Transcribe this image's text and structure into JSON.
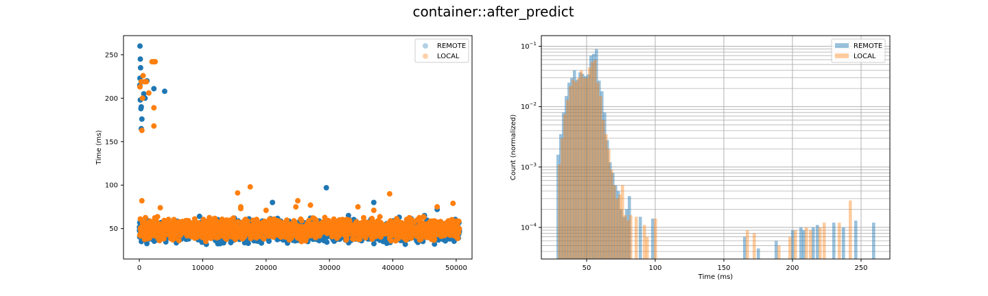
{
  "figure_title": "container::after_predict",
  "colors": {
    "remote": "#1f77b4",
    "local": "#ff7f0e",
    "grid": "#b0b0b0"
  },
  "chart_data": [
    {
      "type": "scatter",
      "xlabel": "",
      "ylabel": "Time (ms)",
      "xlim": [
        -2500,
        52500
      ],
      "ylim": [
        15,
        272
      ],
      "xticks": [
        0,
        10000,
        20000,
        30000,
        40000,
        50000
      ],
      "yticks": [
        50,
        100,
        150,
        200,
        250
      ],
      "grid": false,
      "legend_position": "upper right",
      "series": [
        {
          "name": "REMOTE",
          "color": "#1f77b4",
          "band": {
            "x_range": [
              0,
              50500
            ],
            "y_range": [
              30,
              64
            ]
          },
          "points": [
            [
              100,
              260
            ],
            [
              150,
              245
            ],
            [
              200,
              235
            ],
            [
              100,
              223
            ],
            [
              80,
              215
            ],
            [
              150,
              198
            ],
            [
              250,
              188
            ],
            [
              400,
              176
            ],
            [
              300,
              165
            ],
            [
              700,
              205
            ],
            [
              1200,
              220
            ],
            [
              2300,
              211
            ],
            [
              4000,
              208
            ],
            [
              900,
              200
            ],
            [
              300,
              190
            ],
            [
              29500,
              97
            ],
            [
              21000,
              80
            ],
            [
              37000,
              80
            ],
            [
              47000,
              72
            ],
            [
              33000,
              65
            ],
            [
              15000,
              62
            ],
            [
              45000,
              65
            ],
            [
              9500,
              64
            ],
            [
              27000,
              62
            ],
            [
              41000,
              63
            ]
          ]
        },
        {
          "name": "LOCAL",
          "color": "#ff7f0e",
          "band": {
            "x_range": [
              0,
              50500
            ],
            "y_range": [
              33,
              66
            ]
          },
          "points": [
            [
              400,
              82
            ],
            [
              400,
              163
            ],
            [
              100,
              213
            ],
            [
              300,
              219
            ],
            [
              600,
              226
            ],
            [
              800,
              219
            ],
            [
              1100,
              219
            ],
            [
              1500,
              206
            ],
            [
              2000,
              242
            ],
            [
              2300,
              242
            ],
            [
              2500,
              242
            ],
            [
              2300,
              189
            ],
            [
              2300,
              168
            ],
            [
              500,
              200
            ],
            [
              3300,
              74
            ],
            [
              17500,
              98
            ],
            [
              16000,
              75
            ],
            [
              15500,
              91
            ],
            [
              25000,
              82
            ],
            [
              24700,
              75
            ],
            [
              27000,
              77
            ],
            [
              34500,
              75
            ],
            [
              39500,
              90
            ],
            [
              49500,
              79
            ],
            [
              47000,
              75
            ],
            [
              37000,
              71
            ],
            [
              16000,
              73
            ],
            [
              20000,
              71
            ]
          ]
        }
      ]
    },
    {
      "type": "bar",
      "subtype": "histogram",
      "xlabel": "Time (ms)",
      "ylabel": "Count (normalized)",
      "xlim": [
        17,
        271
      ],
      "ylim": [
        3e-05,
        0.15
      ],
      "yscale": "log",
      "xticks": [
        50,
        100,
        150,
        200,
        250
      ],
      "yticks": [
        "10^-4",
        "10^-3",
        "10^-2",
        "10^-1"
      ],
      "grid": true,
      "legend_position": "upper right",
      "bin_width": 2.3,
      "series": [
        {
          "name": "REMOTE",
          "color": "#1f77b4",
          "alpha": 0.45,
          "bins": [
            [
              28,
              0.0016
            ],
            [
              30,
              0.0035
            ],
            [
              32,
              0.008
            ],
            [
              34,
              0.015
            ],
            [
              36,
              0.025
            ],
            [
              38,
              0.03
            ],
            [
              40,
              0.04
            ],
            [
              42,
              0.028
            ],
            [
              44,
              0.037
            ],
            [
              46,
              0.035
            ],
            [
              48,
              0.032
            ],
            [
              50,
              0.034
            ],
            [
              52,
              0.07
            ],
            [
              54,
              0.075
            ],
            [
              56,
              0.09
            ],
            [
              58,
              0.027
            ],
            [
              60,
              0.018
            ],
            [
              62,
              0.008
            ],
            [
              64,
              0.0028
            ],
            [
              66,
              0.0012
            ],
            [
              68,
              0.0008
            ],
            [
              70,
              0.0005
            ],
            [
              72,
              0.0004
            ],
            [
              74,
              0.0002
            ],
            [
              76,
              0.00015
            ],
            [
              78,
              0.0002
            ],
            [
              80,
              0.00033
            ],
            [
              88,
              0.00015
            ],
            [
              97,
              0.00014
            ],
            [
              164,
              7e-05
            ],
            [
              174,
              4.5e-05
            ],
            [
              187,
              6e-05
            ],
            [
              199,
              9e-05
            ],
            [
              205,
              0.0001
            ],
            [
              207,
              9e-05
            ],
            [
              214,
              0.0001
            ],
            [
              217,
              0.00011
            ],
            [
              229,
              0.00012
            ],
            [
              236,
              0.0001
            ],
            [
              245,
              0.00013
            ],
            [
              258,
              0.00012
            ]
          ]
        },
        {
          "name": "LOCAL",
          "color": "#ff7f0e",
          "alpha": 0.4,
          "bins": [
            [
              29,
              0.0011
            ],
            [
              31,
              0.003
            ],
            [
              33,
              0.0075
            ],
            [
              35,
              0.013
            ],
            [
              37,
              0.022
            ],
            [
              39,
              0.028
            ],
            [
              41,
              0.026
            ],
            [
              43,
              0.03
            ],
            [
              45,
              0.04
            ],
            [
              47,
              0.03
            ],
            [
              49,
              0.03
            ],
            [
              51,
              0.045
            ],
            [
              53,
              0.055
            ],
            [
              55,
              0.06
            ],
            [
              57,
              0.025
            ],
            [
              59,
              0.015
            ],
            [
              61,
              0.006
            ],
            [
              63,
              0.0035
            ],
            [
              65,
              0.002
            ],
            [
              67,
              0.0009
            ],
            [
              69,
              0.0005
            ],
            [
              71,
              0.0003
            ],
            [
              73,
              0.00035
            ],
            [
              75,
              0.0005
            ],
            [
              77,
              0.00016
            ],
            [
              79,
              0.00013
            ],
            [
              81,
              0.00016
            ],
            [
              85,
              0.00015
            ],
            [
              91,
              0.00011
            ],
            [
              93,
              7e-05
            ],
            [
              99,
              0.00014
            ],
            [
              166,
              9e-05
            ],
            [
              171,
              8e-05
            ],
            [
              189,
              5e-05
            ],
            [
              197,
              7e-05
            ],
            [
              201,
              9e-05
            ],
            [
              209,
              0.0001
            ],
            [
              212,
              9e-05
            ],
            [
              219,
              0.0001
            ],
            [
              222,
              0.00012
            ],
            [
              233,
              0.00012
            ],
            [
              241,
              0.00028
            ]
          ]
        }
      ]
    }
  ]
}
